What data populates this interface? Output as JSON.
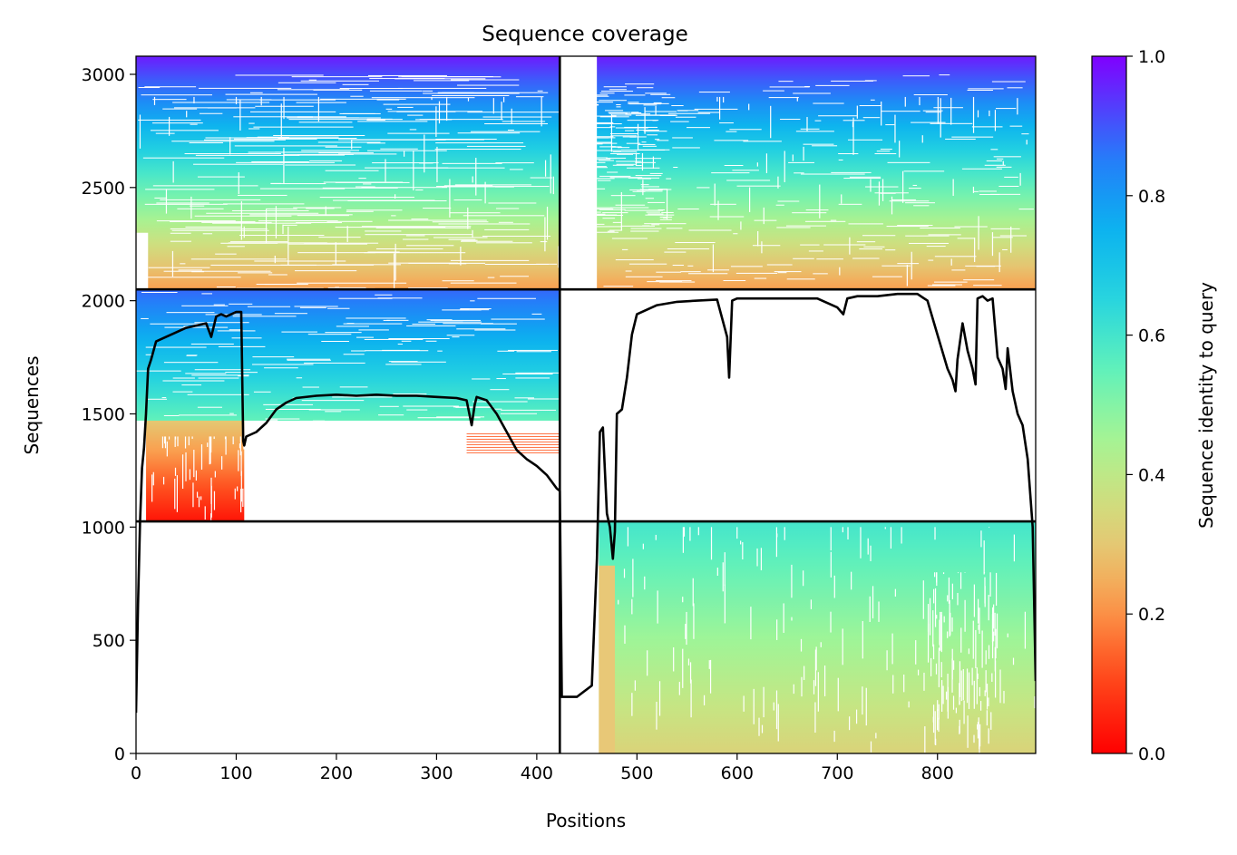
{
  "chart_data": {
    "type": "heatmap",
    "title": "Sequence coverage",
    "xlabel": "Positions",
    "ylabel": "Sequences",
    "xlim": [
      0,
      898
    ],
    "ylim": [
      0,
      3080
    ],
    "xticks": [
      0,
      100,
      200,
      300,
      400,
      500,
      600,
      700,
      800
    ],
    "yticks": [
      0,
      500,
      1000,
      1500,
      2000,
      2500,
      3000
    ],
    "colorbar": {
      "label": "Sequence identity to query",
      "range": [
        0,
        1
      ],
      "ticks": [
        "0.0",
        "0.2",
        "0.4",
        "0.6",
        "0.8",
        "1.0"
      ],
      "colormap": "rainbow_r"
    },
    "grid": false,
    "legend": "none",
    "divider_positions": [
      423
    ],
    "divider_sequences": [
      1025,
      2050
    ],
    "blocks": [
      {
        "x": [
          0,
          423
        ],
        "y": [
          2050,
          3080
        ],
        "identity_top": 0.97,
        "identity_bottom": 0.22,
        "coverage": "full"
      },
      {
        "x": [
          423,
          898
        ],
        "y": [
          2050,
          3080
        ],
        "identity_top": 0.97,
        "identity_bottom": 0.22,
        "coverage": "starts ~460"
      },
      {
        "x": [
          0,
          423
        ],
        "y": [
          1470,
          2050
        ],
        "identity_top": 0.88,
        "identity_bottom": 0.55,
        "coverage": "full"
      },
      {
        "x": [
          0,
          108
        ],
        "y": [
          1025,
          1470
        ],
        "identity_top": 0.3,
        "identity_bottom": 0.03,
        "coverage": "partial"
      },
      {
        "x": [
          423,
          898
        ],
        "y": [
          1025,
          2050
        ],
        "identity_top": null,
        "identity_bottom": null,
        "coverage": "none"
      },
      {
        "x": [
          0,
          423
        ],
        "y": [
          0,
          1025
        ],
        "identity_top": null,
        "identity_bottom": null,
        "coverage": "none"
      },
      {
        "x": [
          460,
          898
        ],
        "y": [
          0,
          1025
        ],
        "identity_top": 0.6,
        "identity_bottom": 0.33,
        "coverage": "starts ~460"
      }
    ],
    "coverage_line": {
      "x": [
        0,
        2,
        4,
        6,
        8,
        10,
        12,
        15,
        20,
        30,
        40,
        50,
        60,
        70,
        75,
        80,
        85,
        90,
        95,
        100,
        105,
        107,
        108,
        110,
        120,
        130,
        140,
        150,
        160,
        180,
        200,
        220,
        240,
        260,
        280,
        300,
        320,
        330,
        335,
        338,
        340,
        350,
        360,
        380,
        390,
        400,
        410,
        420,
        423,
        425,
        440,
        455,
        460,
        463,
        466,
        470,
        473,
        476,
        478,
        480,
        485,
        490,
        495,
        500,
        520,
        540,
        560,
        580,
        590,
        592,
        595,
        600,
        620,
        640,
        660,
        680,
        700,
        706,
        710,
        720,
        740,
        760,
        780,
        790,
        800,
        810,
        815,
        818,
        820,
        825,
        830,
        835,
        838,
        840,
        845,
        850,
        855,
        860,
        865,
        868,
        870,
        875,
        880,
        885,
        890,
        895,
        898
      ],
      "y": [
        180,
        660,
        1020,
        1260,
        1350,
        1500,
        1700,
        1740,
        1820,
        1840,
        1860,
        1880,
        1890,
        1900,
        1840,
        1930,
        1940,
        1930,
        1940,
        1950,
        1950,
        1380,
        1360,
        1400,
        1420,
        1460,
        1520,
        1550,
        1570,
        1580,
        1585,
        1580,
        1585,
        1580,
        1580,
        1575,
        1570,
        1560,
        1450,
        1540,
        1575,
        1560,
        1500,
        1340,
        1300,
        1270,
        1230,
        1170,
        1160,
        250,
        250,
        300,
        860,
        1420,
        1440,
        1060,
        1000,
        860,
        980,
        1500,
        1520,
        1660,
        1850,
        1940,
        1980,
        1995,
        2000,
        2005,
        1840,
        1660,
        2000,
        2010,
        2010,
        2010,
        2010,
        2010,
        1970,
        1940,
        2010,
        2020,
        2020,
        2030,
        2030,
        2000,
        1850,
        1700,
        1650,
        1600,
        1740,
        1900,
        1780,
        1700,
        1630,
        2010,
        2020,
        2000,
        2010,
        1750,
        1700,
        1610,
        1790,
        1600,
        1500,
        1450,
        1300,
        1000,
        320
      ]
    }
  }
}
